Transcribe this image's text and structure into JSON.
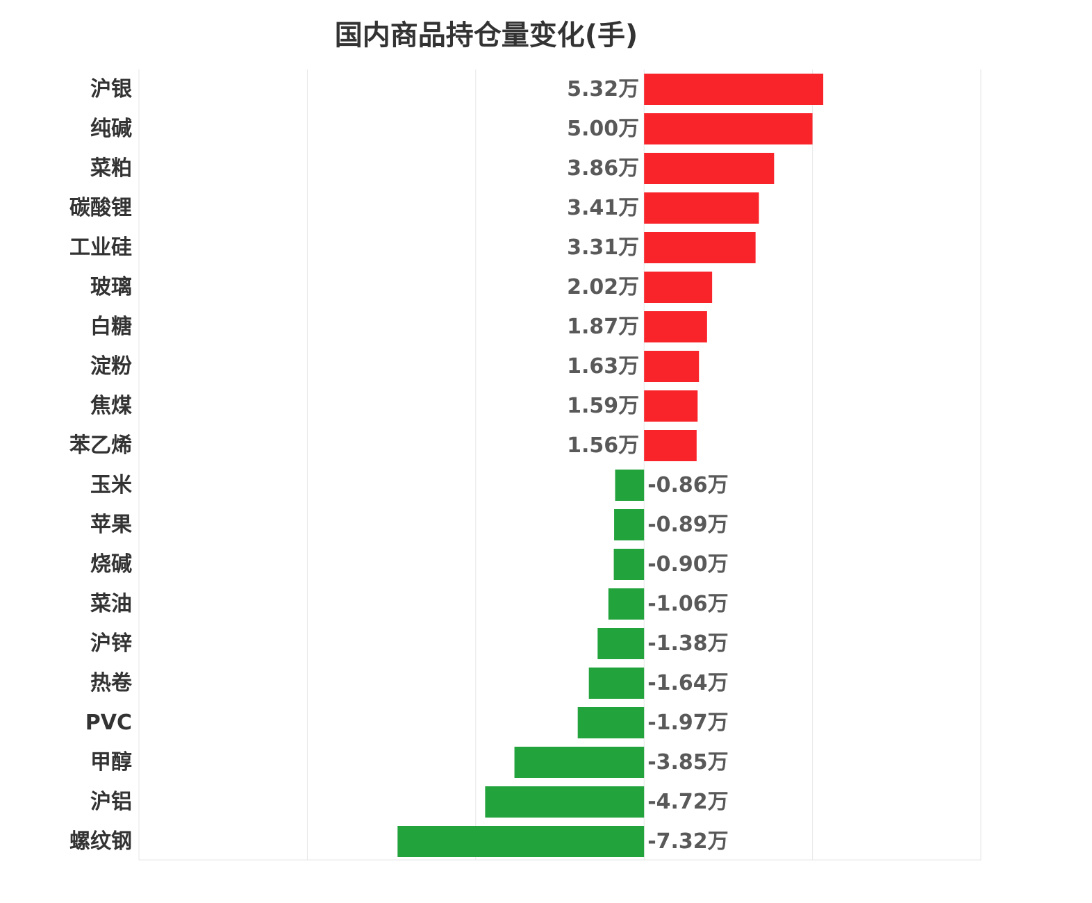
{
  "chart_data": {
    "type": "bar",
    "orientation": "horizontal",
    "title": "国内商品持仓量变化(手)",
    "xlim": [
      -15,
      10
    ],
    "grid": true,
    "colors": {
      "positive": "#f8242a",
      "negative": "#22a33c",
      "grid": "#e6e6e6"
    },
    "unit_suffix": "万",
    "categories": [
      "沪银",
      "纯碱",
      "菜粕",
      "碳酸锂",
      "工业硅",
      "玻璃",
      "白糖",
      "淀粉",
      "焦煤",
      "苯乙烯",
      "玉米",
      "苹果",
      "烧碱",
      "菜油",
      "沪锌",
      "热卷",
      "PVC",
      "甲醇",
      "沪铝",
      "螺纹钢"
    ],
    "values": [
      5.32,
      5.0,
      3.86,
      3.41,
      3.31,
      2.02,
      1.87,
      1.63,
      1.59,
      1.56,
      -0.86,
      -0.89,
      -0.9,
      -1.06,
      -1.38,
      -1.64,
      -1.97,
      -3.85,
      -4.72,
      -7.32
    ],
    "value_labels": [
      "5.32万",
      "5.00万",
      "3.86万",
      "3.41万",
      "3.31万",
      "2.02万",
      "1.87万",
      "1.63万",
      "1.59万",
      "1.56万",
      "-0.86万",
      "-0.89万",
      "-0.90万",
      "-1.06万",
      "-1.38万",
      "-1.64万",
      "-1.97万",
      "-3.85万",
      "-4.72万",
      "-7.32万"
    ]
  }
}
